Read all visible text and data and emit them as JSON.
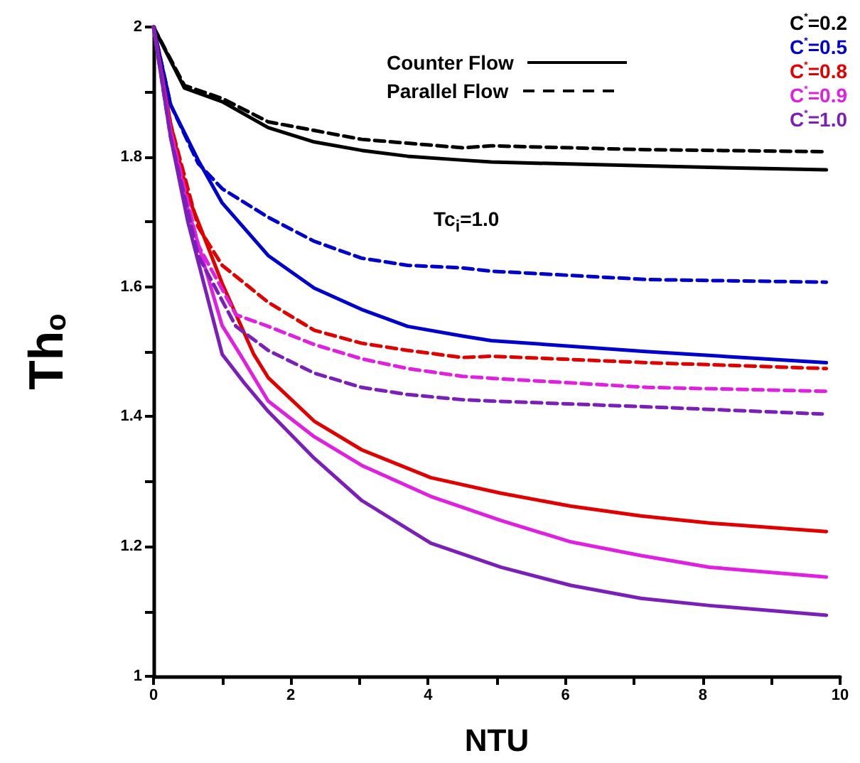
{
  "chart_data": {
    "type": "line",
    "xlabel": "NTU",
    "ylabel": "Th$_{o}$",
    "xlim": [
      0,
      10
    ],
    "xticks": [
      0,
      {
        "value": 1,
        "label": null
      },
      2,
      {
        "value": 3,
        "label": null
      },
      4,
      {
        "value": 5,
        "label": null
      },
      6,
      {
        "value": 7,
        "label": null
      },
      8,
      {
        "value": 9,
        "label": null
      },
      10
    ],
    "ylim": [
      1,
      2
    ],
    "yticks": [
      1,
      {
        "value": 1.1,
        "label": null
      },
      1.2,
      {
        "value": 1.3,
        "label": null
      },
      1.4,
      {
        "value": 1.5,
        "label": null
      },
      1.6,
      {
        "value": 1.7,
        "label": null
      },
      1.8,
      {
        "value": 1.9,
        "label": null
      },
      2
    ],
    "grid": false,
    "legend": "top right",
    "marker": "none",
    "line_style": "solid",
    "annotations": [
      "Counter Flow",
      "Parallel Flow",
      "Tc$_{i}$=1.0"
    ],
    "series": [
      {
        "name": "C$^{*}$=0.2",
        "color": "#000000",
        "line_style": "solid",
        "x": [
          0,
          0.45,
          1.0,
          1.67,
          2.34,
          3.03,
          3.7,
          4.5,
          4.92,
          7.2,
          9.8
        ],
        "values": [
          2.0,
          1.906,
          1.885,
          1.845,
          1.823,
          1.81,
          1.801,
          1.795,
          1.792,
          1.786,
          1.78
        ]
      },
      {
        "name": "C$^{*}$=0.5",
        "color": "#0000cc",
        "line_style": "solid",
        "x": [
          0,
          0.25,
          0.65,
          1.0,
          1.67,
          2.34,
          3.03,
          3.7,
          4.5,
          4.92,
          7.2,
          9.8
        ],
        "values": [
          2.0,
          1.88,
          1.795,
          1.729,
          1.648,
          1.598,
          1.565,
          1.539,
          1.524,
          1.517,
          1.5,
          1.483
        ]
      },
      {
        "name": "C$^{*}$=0.8",
        "color": "#e00000",
        "line_style": "solid",
        "x": [
          0,
          0.25,
          0.5,
          0.65,
          1.0,
          1.46,
          1.67,
          2.34,
          3.03,
          4.04,
          5.06,
          6.08,
          7.1,
          8.1,
          9.8
        ],
        "values": [
          2.0,
          1.85,
          1.74,
          1.7,
          1.605,
          1.496,
          1.46,
          1.393,
          1.349,
          1.306,
          1.282,
          1.262,
          1.247,
          1.236,
          1.223
        ]
      },
      {
        "name": "C$^{*}$=0.9",
        "color": "#e020e0",
        "line_style": "solid",
        "x": [
          0,
          0.25,
          0.5,
          1.0,
          1.26,
          1.67,
          2.34,
          3.03,
          4.04,
          5.06,
          6.08,
          7.1,
          8.1,
          9.8
        ],
        "values": [
          2.0,
          1.84,
          1.72,
          1.54,
          1.496,
          1.424,
          1.369,
          1.325,
          1.277,
          1.24,
          1.207,
          1.186,
          1.168,
          1.153
        ]
      },
      {
        "name": "C$^{*}$=1.0",
        "color": "#7a1fb8",
        "line_style": "solid",
        "x": [
          0,
          0.25,
          0.5,
          1.0,
          1.32,
          1.67,
          2.34,
          3.03,
          4.04,
          5.06,
          6.08,
          7.1,
          8.1,
          9.8
        ],
        "values": [
          2.0,
          1.83,
          1.7,
          1.496,
          1.452,
          1.408,
          1.336,
          1.271,
          1.205,
          1.168,
          1.14,
          1.12,
          1.109,
          1.094
        ]
      },
      {
        "color": "#000000",
        "line_style": "dashed",
        "x": [
          0,
          0.45,
          1.0,
          1.67,
          3.03,
          4.5,
          4.92,
          7.2,
          9.8
        ],
        "values": [
          2.0,
          1.91,
          1.89,
          1.854,
          1.827,
          1.814,
          1.817,
          1.811,
          1.808
        ]
      },
      {
        "color": "#0000cc",
        "line_style": "dashed",
        "x": [
          0,
          0.25,
          0.65,
          1.0,
          1.67,
          2.34,
          3.03,
          3.7,
          4.5,
          4.92,
          7.2,
          9.8
        ],
        "values": [
          2.0,
          1.88,
          1.79,
          1.751,
          1.707,
          1.67,
          1.644,
          1.633,
          1.629,
          1.624,
          1.611,
          1.607
        ]
      },
      {
        "color": "#e00000",
        "line_style": "dashed",
        "x": [
          0,
          0.25,
          0.65,
          1.0,
          1.67,
          2.34,
          3.03,
          3.7,
          4.5,
          4.92,
          7.2,
          9.8
        ],
        "values": [
          2.0,
          1.85,
          1.692,
          1.633,
          1.576,
          1.533,
          1.513,
          1.502,
          1.491,
          1.493,
          1.483,
          1.474
        ]
      },
      {
        "color": "#e020e0",
        "line_style": "dashed",
        "x": [
          0,
          0.25,
          0.65,
          1.2,
          1.67,
          2.34,
          3.03,
          3.7,
          4.5,
          4.92,
          7.2,
          9.8
        ],
        "values": [
          2.0,
          1.84,
          1.664,
          1.557,
          1.539,
          1.511,
          1.489,
          1.474,
          1.462,
          1.459,
          1.445,
          1.439
        ]
      },
      {
        "color": "#7a1fb8",
        "line_style": "dashed",
        "x": [
          0,
          0.25,
          0.65,
          1.2,
          1.67,
          2.34,
          3.03,
          3.7,
          4.5,
          4.92,
          7.2,
          9.74
        ],
        "values": [
          2.0,
          1.83,
          1.648,
          1.539,
          1.502,
          1.467,
          1.445,
          1.434,
          1.426,
          1.424,
          1.415,
          1.404
        ]
      }
    ]
  }
}
